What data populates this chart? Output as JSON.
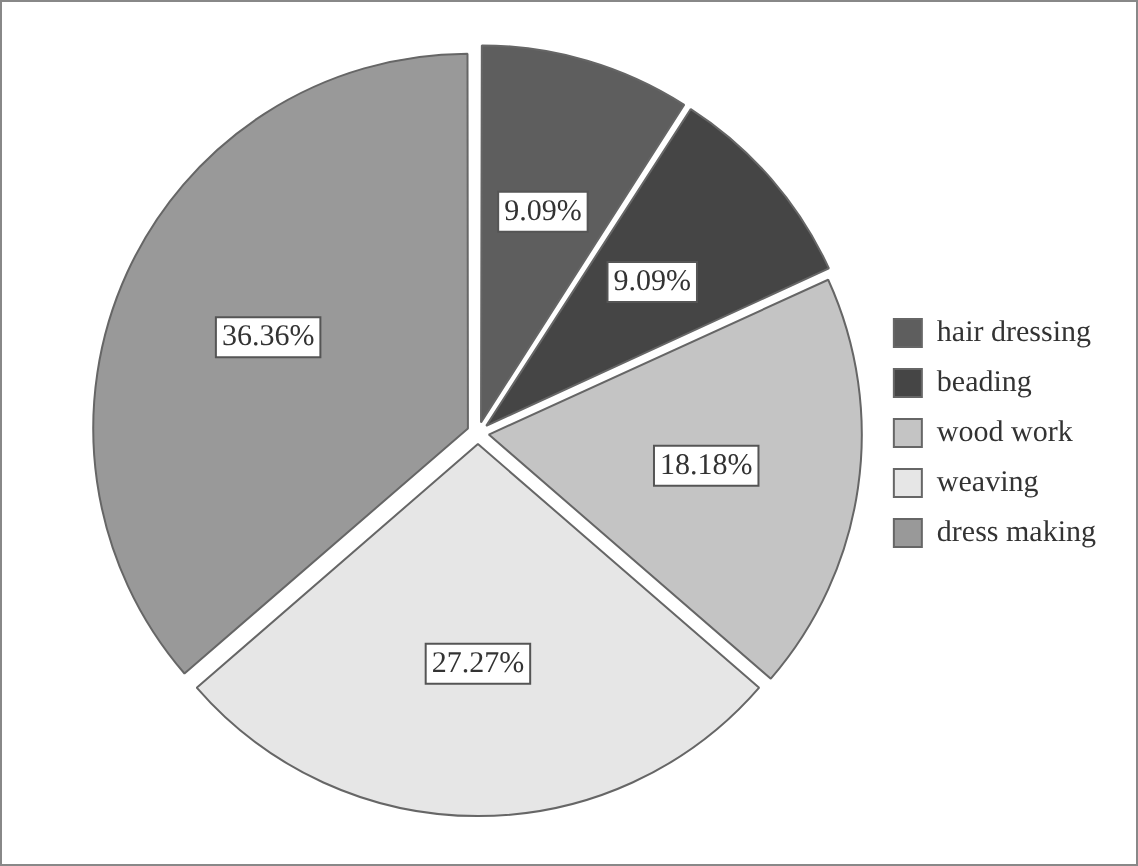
{
  "chart_data": {
    "type": "pie",
    "categories": [
      "hair dressing",
      "beading",
      "wood work",
      "weaving",
      "dress making"
    ],
    "values": [
      9.09,
      9.09,
      18.18,
      27.27,
      36.36
    ],
    "value_labels": [
      "9.09%",
      "9.09%",
      "18.18%",
      "27.27%",
      "36.36%"
    ],
    "colors": [
      "#5e5e5e",
      "#454545",
      "#c4c4c4",
      "#e6e6e6",
      "#999999"
    ],
    "legend": "right"
  }
}
